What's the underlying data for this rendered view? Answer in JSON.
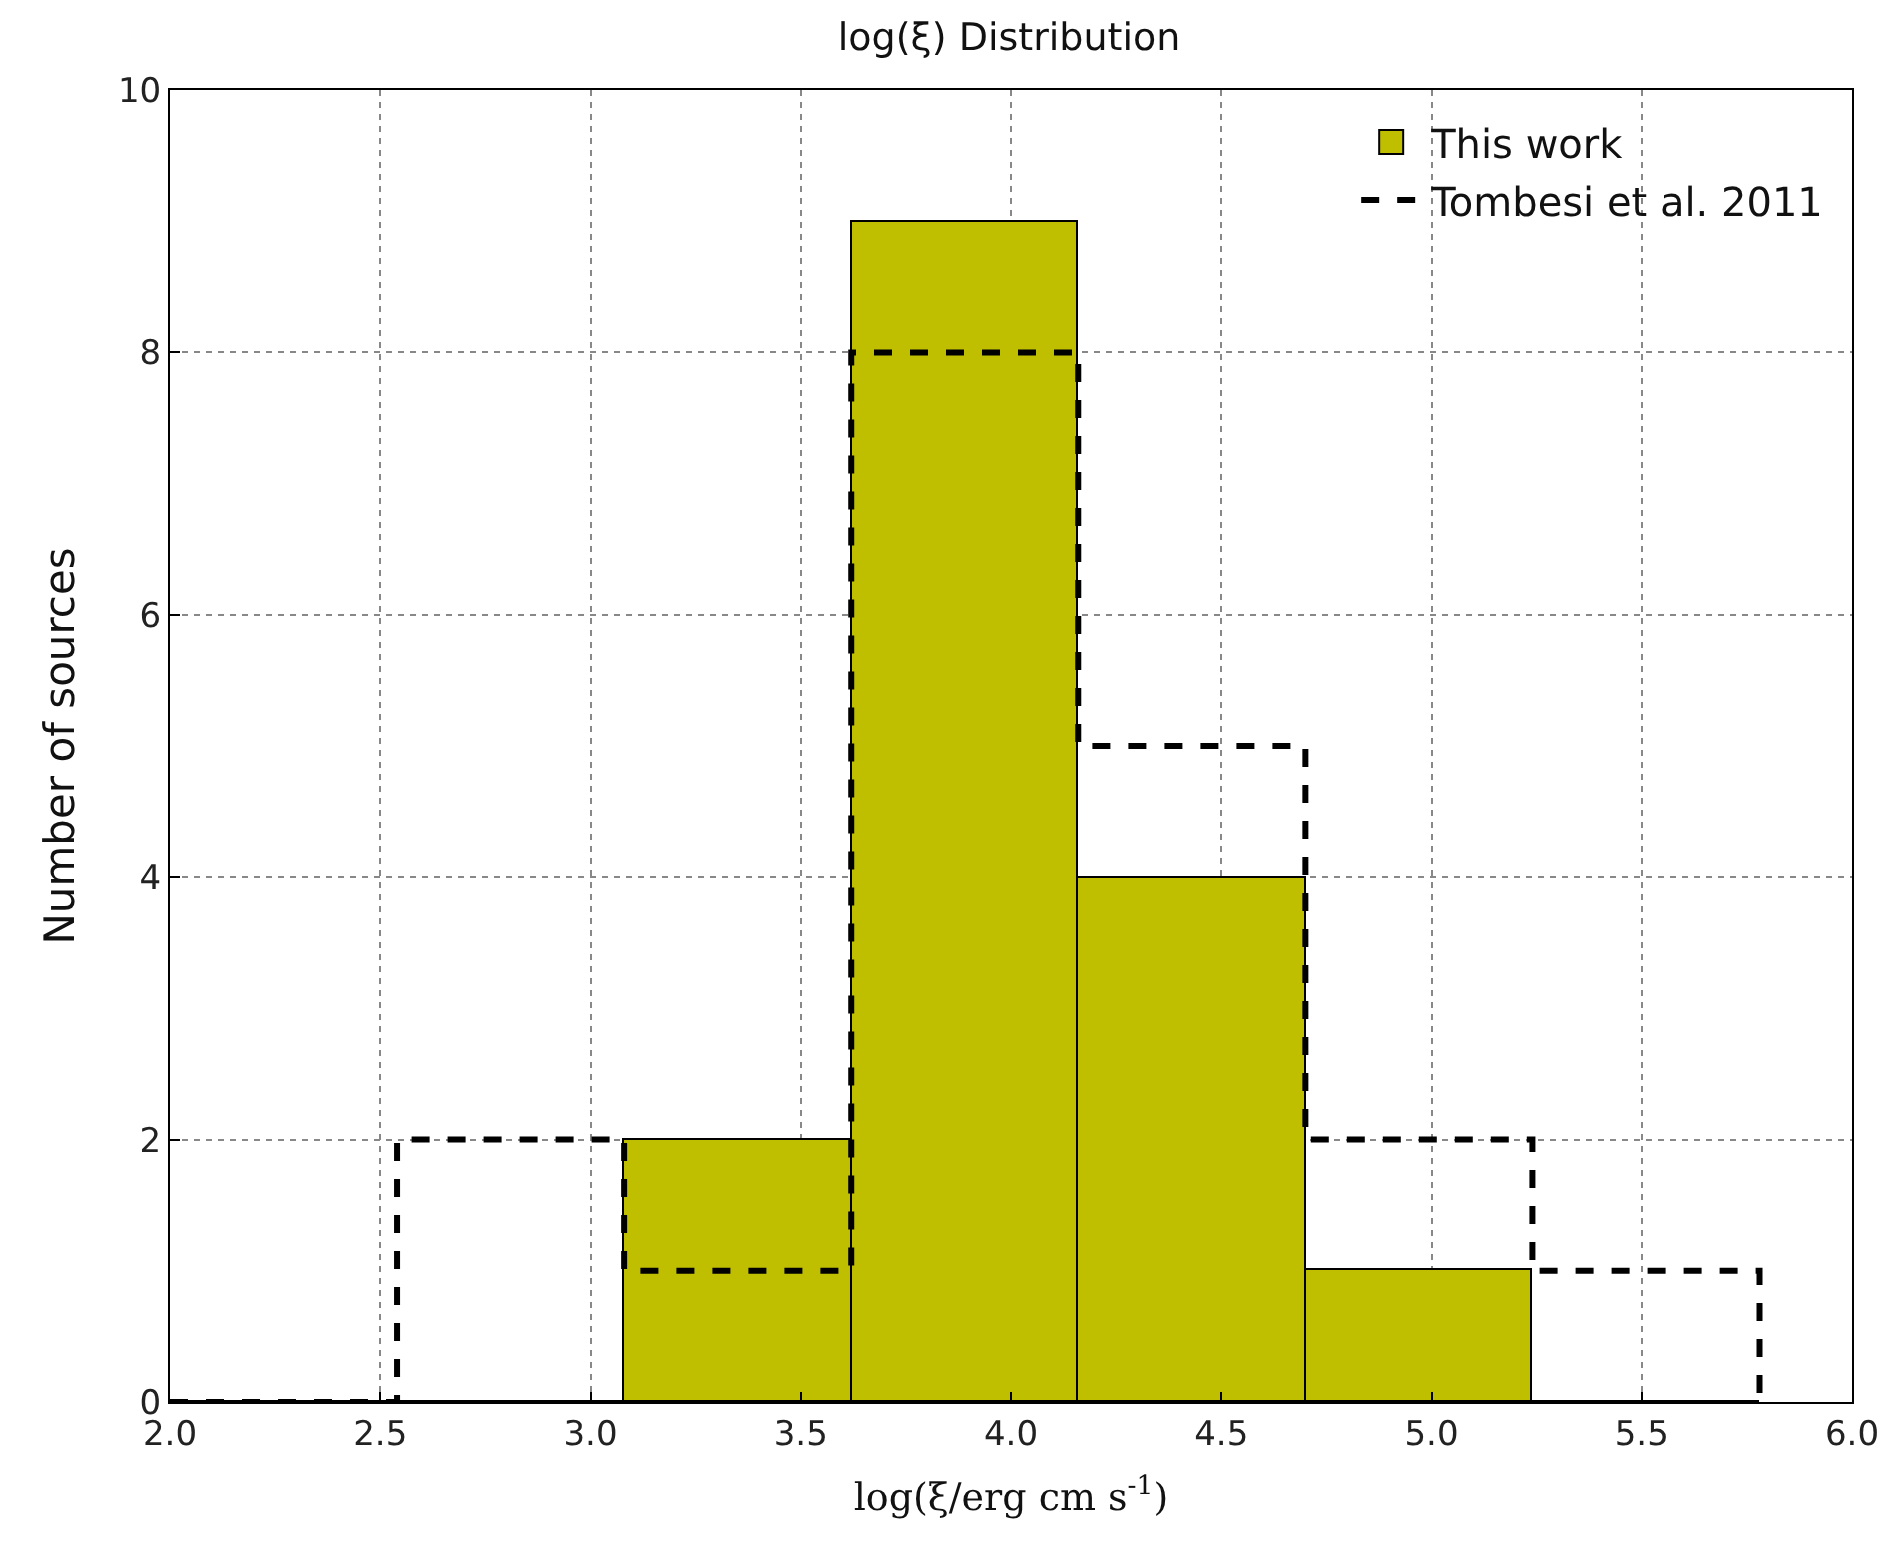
{
  "chart_data": {
    "type": "histogram",
    "title": "log(ξ) Distribution",
    "xlabel": "log(ξ/erg cm s$^{-1}$)",
    "ylabel": "Number of sources",
    "series": [
      {
        "name": "This work",
        "color": "#bfbf00",
        "line_style": "solid",
        "values": [
          0,
          0,
          2,
          9,
          4,
          1,
          0
        ]
      },
      {
        "name": "Tombesi et al. 2011",
        "color": "#000000",
        "line_style": "dashed",
        "values": [
          0,
          2,
          1,
          8,
          5,
          2,
          1
        ]
      }
    ],
    "bins": [
      2.0,
      2.54,
      3.08,
      3.62,
      4.16,
      4.7,
      5.24,
      5.78
    ],
    "xlim": [
      2.0,
      6.0
    ],
    "xticks": [
      {
        "value": 2.0,
        "label": "2.0"
      },
      {
        "value": 2.5,
        "label": "2.5"
      },
      {
        "value": 3.0,
        "label": "3.0"
      },
      {
        "value": 3.5,
        "label": "3.5"
      },
      {
        "value": 4.0,
        "label": "4.0"
      },
      {
        "value": 4.5,
        "label": "4.5"
      },
      {
        "value": 5.0,
        "label": "5.0"
      },
      {
        "value": 5.5,
        "label": "5.5"
      },
      {
        "value": 6.0,
        "label": "6.0"
      }
    ],
    "ylim": [
      0,
      10
    ],
    "yticks": [
      0,
      2,
      4,
      6,
      8,
      10
    ],
    "grid": true,
    "legend": "top right"
  }
}
